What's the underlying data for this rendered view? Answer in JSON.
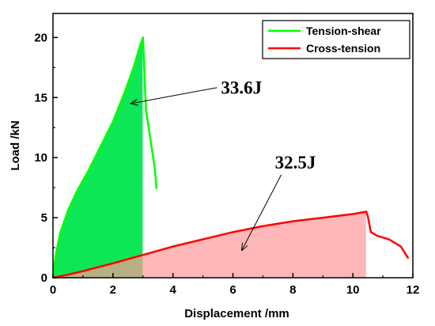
{
  "chart_data": {
    "type": "line",
    "title": "",
    "xlabel": "Displacement /mm",
    "ylabel": "Load /kN",
    "xlim": [
      0,
      12
    ],
    "ylim": [
      0,
      22
    ],
    "xticks": [
      0,
      2,
      4,
      6,
      8,
      10,
      12
    ],
    "yticks": [
      0,
      5,
      10,
      15,
      20
    ],
    "grid": false,
    "legend_position": "top-right",
    "series": [
      {
        "name": "Tension-shear",
        "color": "#00ff00",
        "fill_color": "#00e64d",
        "fill_until_x": 3.0,
        "x": [
          0,
          0.1,
          0.25,
          0.5,
          0.8,
          1.2,
          1.6,
          2.0,
          2.4,
          2.7,
          2.9,
          3.0,
          3.1,
          3.25,
          3.4,
          3.45
        ],
        "y": [
          0,
          2.0,
          3.8,
          5.6,
          7.2,
          9.0,
          11.0,
          13.0,
          15.5,
          17.6,
          19.3,
          20.0,
          14.0,
          11.5,
          9.0,
          7.4
        ]
      },
      {
        "name": "Cross-tension",
        "color": "#ff0000",
        "fill_color": "#ff9999",
        "fill_until_x": 10.45,
        "x": [
          0,
          0.5,
          1.0,
          2.0,
          3.0,
          4.0,
          5.0,
          6.0,
          7.0,
          8.0,
          9.0,
          10.0,
          10.45,
          10.5,
          10.6,
          10.8,
          11.2,
          11.6,
          11.85
        ],
        "y": [
          0,
          0.25,
          0.55,
          1.2,
          1.9,
          2.6,
          3.2,
          3.8,
          4.3,
          4.7,
          5.0,
          5.3,
          5.5,
          5.1,
          3.8,
          3.5,
          3.2,
          2.6,
          1.6
        ]
      }
    ],
    "annotations": [
      {
        "text": "33.6J",
        "x": 5.6,
        "y": 15.3,
        "arrow_to_x": 2.6,
        "arrow_to_y": 14.5
      },
      {
        "text": "32.5J",
        "x": 7.4,
        "y": 9.1,
        "arrow_to_x": 6.3,
        "arrow_to_y": 2.3
      }
    ]
  }
}
